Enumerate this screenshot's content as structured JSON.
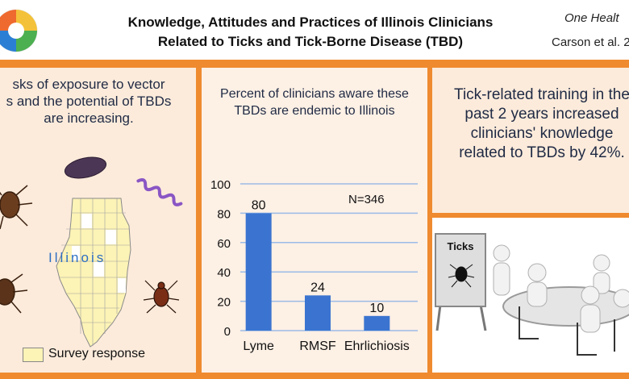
{
  "header": {
    "title_line1": "Knowledge, Attitudes and Practices of Illinois Clinicians",
    "title_line2": "Related to Ticks and Tick-Borne Disease (TBD)",
    "journal": "One Healt",
    "authors": "Carson et al. 2"
  },
  "left_panel": {
    "text_line1": "sks of exposure to vector",
    "text_line2": "s and the potential of TBDs",
    "text_line3": "are increasing.",
    "map_label": "Illinois",
    "legend_label": "Survey response",
    "legend_color": "#fcf3b6"
  },
  "middle_panel": {
    "title": "Percent of clinicians aware these TBDs are endemic to Illinois",
    "n_label": "N=346"
  },
  "right_panel": {
    "text": "Tick-related training in the past 2 years increased clinicians' knowledge related to TBDs by 42%.",
    "sign_label": "Ticks"
  },
  "chart_data": {
    "type": "bar",
    "categories": [
      "Lyme",
      "RMSF",
      "Ehrlichiosis"
    ],
    "values": [
      80,
      24,
      10
    ],
    "ylim": [
      0,
      100
    ],
    "yticks": [
      0,
      20,
      40,
      60,
      80,
      100
    ],
    "bar_color": "#3a74d0",
    "grid": true
  },
  "colors": {
    "accent_orange": "#ef8a2f",
    "panel_bg": "#fcebdb",
    "text_navy": "#1f2a44"
  }
}
